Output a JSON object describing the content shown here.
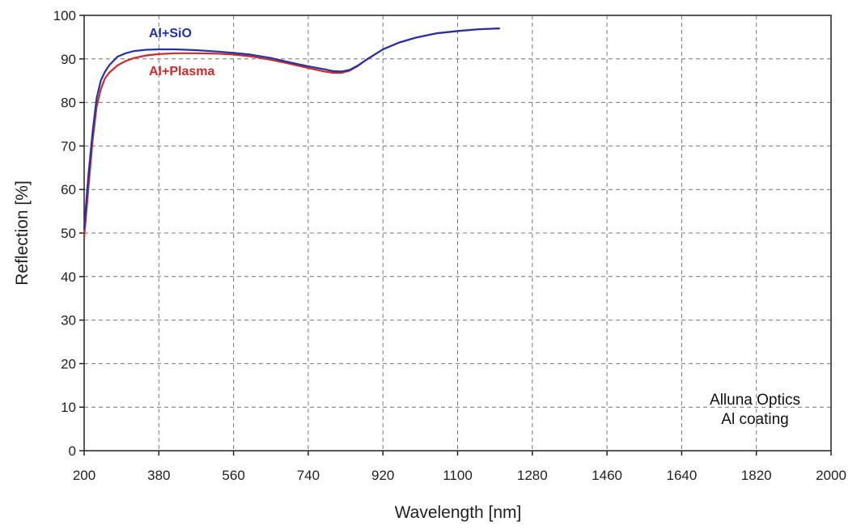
{
  "chart_data": {
    "type": "line",
    "title": "",
    "xlabel": "Wavelength [nm]",
    "ylabel": "Reflection [%]",
    "xlim": [
      200,
      2000
    ],
    "ylim": [
      0,
      100
    ],
    "xticks": [
      200,
      380,
      560,
      740,
      920,
      1100,
      1280,
      1460,
      1640,
      1820,
      2000
    ],
    "yticks": [
      0,
      10,
      20,
      30,
      40,
      50,
      60,
      70,
      80,
      90,
      100
    ],
    "grid": true,
    "series": [
      {
        "name": "Al+SiO",
        "color": "#2233aa",
        "x": [
          200,
          210,
          220,
          230,
          240,
          250,
          260,
          280,
          300,
          320,
          350,
          380,
          420,
          470,
          520,
          560,
          600,
          650,
          700,
          740,
          780,
          800,
          820,
          840,
          860,
          880,
          900,
          920,
          960,
          1000,
          1050,
          1100,
          1150,
          1200
        ],
        "y": [
          51,
          63,
          73,
          81,
          85,
          87,
          88.5,
          90.5,
          91.3,
          91.8,
          92.1,
          92.2,
          92.2,
          92.0,
          91.7,
          91.4,
          91.0,
          90.2,
          89.1,
          88.3,
          87.6,
          87.2,
          87.1,
          87.5,
          88.5,
          89.8,
          91.0,
          92.2,
          93.8,
          94.9,
          95.9,
          96.4,
          96.8,
          97.0
        ]
      },
      {
        "name": "Al+Plasma",
        "color": "#cc2b2b",
        "x": [
          200,
          210,
          220,
          230,
          240,
          250,
          260,
          280,
          300,
          320,
          350,
          380,
          420,
          470,
          520,
          560,
          600,
          650,
          700,
          740,
          780,
          800,
          820,
          840,
          860,
          880,
          900,
          920,
          960,
          1000,
          1050,
          1100,
          1150,
          1200
        ],
        "y": [
          49,
          60,
          71,
          79,
          83,
          85.5,
          86.8,
          88.5,
          89.5,
          90.2,
          90.8,
          91.1,
          91.3,
          91.3,
          91.2,
          91.0,
          90.6,
          89.8,
          88.8,
          87.9,
          87.1,
          86.8,
          86.8,
          87.3,
          88.4,
          89.8,
          91.0,
          92.2,
          93.8,
          94.9,
          95.9,
          96.4,
          96.8,
          97.0
        ]
      }
    ],
    "annotations": [
      "Alluna Optics",
      "Al  coating"
    ]
  }
}
